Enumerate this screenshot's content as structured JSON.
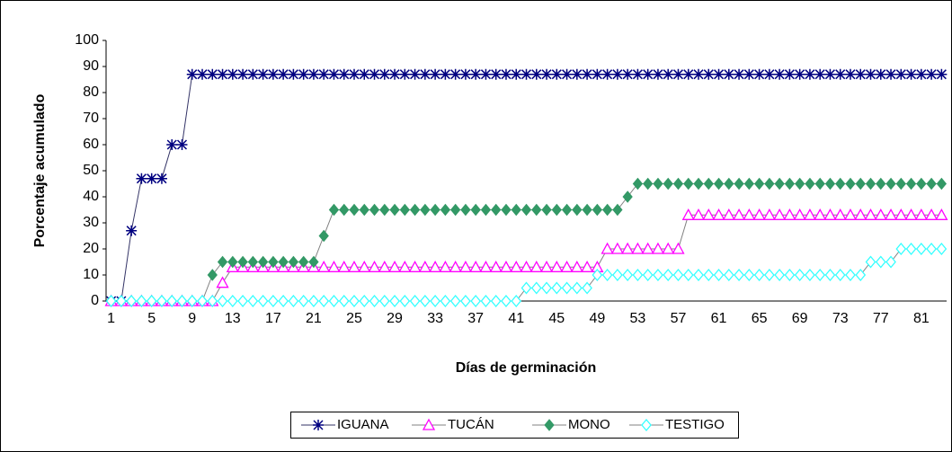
{
  "chart_data": {
    "type": "line",
    "x_label": "Días de germinación",
    "y_label": "Porcentaje acumulado",
    "categories": [
      1,
      null,
      null,
      null,
      5,
      null,
      null,
      null,
      9,
      null,
      null,
      null,
      13,
      null,
      null,
      null,
      17,
      null,
      null,
      null,
      21,
      null,
      null,
      null,
      25,
      null,
      null,
      null,
      29,
      null,
      null,
      null,
      33,
      null,
      null,
      null,
      37,
      null,
      null,
      null,
      41,
      null,
      null,
      null,
      45,
      null,
      null,
      null,
      49,
      null,
      null,
      null,
      53,
      null,
      null,
      null,
      57,
      null,
      null,
      null,
      61,
      null,
      null,
      null,
      65,
      null,
      null,
      null,
      69,
      null,
      null,
      null,
      73,
      null,
      null,
      null,
      77,
      null,
      null,
      null,
      81,
      null,
      null
    ],
    "series": [
      {
        "name": "IGUANA",
        "color": "#000080",
        "values": [
          0,
          0,
          27,
          47,
          47,
          47,
          60,
          60,
          87,
          87,
          87,
          87,
          87,
          87,
          87,
          87,
          87,
          87,
          87,
          87,
          87,
          87,
          87,
          87,
          87,
          87,
          87,
          87,
          87,
          87,
          87,
          87,
          87,
          87,
          87,
          87,
          87,
          87,
          87,
          87,
          87,
          87,
          87,
          87,
          87,
          87,
          87,
          87,
          87,
          87,
          87,
          87,
          87,
          87,
          87,
          87,
          87,
          87,
          87,
          87,
          87,
          87,
          87,
          87,
          87,
          87,
          87,
          87,
          87,
          87,
          87,
          87,
          87,
          87,
          87,
          87,
          87,
          87,
          87,
          87,
          87,
          87,
          87
        ]
      },
      {
        "name": "TUCÁN",
        "color": "#ff00ff",
        "values": [
          0,
          0,
          0,
          0,
          0,
          0,
          0,
          0,
          0,
          0,
          0,
          7,
          13,
          13,
          13,
          13,
          13,
          13,
          13,
          13,
          13,
          13,
          13,
          13,
          13,
          13,
          13,
          13,
          13,
          13,
          13,
          13,
          13,
          13,
          13,
          13,
          13,
          13,
          13,
          13,
          13,
          13,
          13,
          13,
          13,
          13,
          13,
          13,
          13,
          20,
          20,
          20,
          20,
          20,
          20,
          20,
          20,
          33,
          33,
          33,
          33,
          33,
          33,
          33,
          33,
          33,
          33,
          33,
          33,
          33,
          33,
          33,
          33,
          33,
          33,
          33,
          33,
          33,
          33,
          33,
          33,
          33,
          33
        ]
      },
      {
        "name": "MONO",
        "color": "#339966",
        "values": [
          0,
          0,
          0,
          0,
          0,
          0,
          0,
          0,
          0,
          0,
          10,
          15,
          15,
          15,
          15,
          15,
          15,
          15,
          15,
          15,
          15,
          25,
          35,
          35,
          35,
          35,
          35,
          35,
          35,
          35,
          35,
          35,
          35,
          35,
          35,
          35,
          35,
          35,
          35,
          35,
          35,
          35,
          35,
          35,
          35,
          35,
          35,
          35,
          35,
          35,
          35,
          40,
          45,
          45,
          45,
          45,
          45,
          45,
          45,
          45,
          45,
          45,
          45,
          45,
          45,
          45,
          45,
          45,
          45,
          45,
          45,
          45,
          45,
          45,
          45,
          45,
          45,
          45,
          45,
          45,
          45,
          45,
          45
        ]
      },
      {
        "name": "TESTIGO",
        "color": "#33ffff",
        "values": [
          0,
          0,
          0,
          0,
          0,
          0,
          0,
          0,
          0,
          0,
          0,
          0,
          0,
          0,
          0,
          0,
          0,
          0,
          0,
          0,
          0,
          0,
          0,
          0,
          0,
          0,
          0,
          0,
          0,
          0,
          0,
          0,
          0,
          0,
          0,
          0,
          0,
          0,
          0,
          0,
          0,
          5,
          5,
          5,
          5,
          5,
          5,
          5,
          10,
          10,
          10,
          10,
          10,
          10,
          10,
          10,
          10,
          10,
          10,
          10,
          10,
          10,
          10,
          10,
          10,
          10,
          10,
          10,
          10,
          10,
          10,
          10,
          10,
          10,
          10,
          15,
          15,
          15,
          20,
          20,
          20,
          20,
          20
        ]
      }
    ],
    "ylim": [
      0,
      100
    ],
    "yticks": [
      0,
      10,
      20,
      30,
      40,
      50,
      60,
      70,
      80,
      90,
      100
    ],
    "legend": "bottom"
  }
}
